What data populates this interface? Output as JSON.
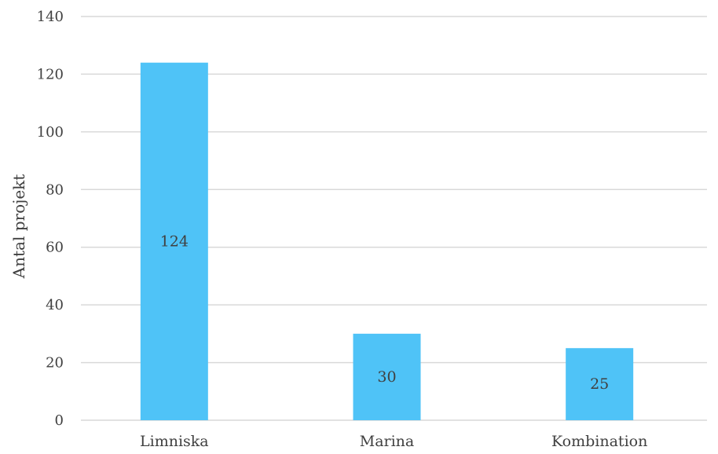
{
  "chart_data": {
    "type": "bar",
    "categories": [
      "Limniska",
      "Marina",
      "Kombination"
    ],
    "values": [
      124,
      30,
      25
    ],
    "data_labels": [
      "124",
      "30",
      "25"
    ],
    "title": "",
    "xlabel": "",
    "ylabel": "Antal projekt",
    "ylim": [
      0,
      140
    ],
    "yticks": [
      0,
      20,
      40,
      60,
      80,
      100,
      120,
      140
    ],
    "ytick_labels": [
      "0",
      "20",
      "40",
      "60",
      "80",
      "100",
      "120",
      "140"
    ],
    "grid": true,
    "legend": "none",
    "bar_color": "#4fc3f7"
  }
}
